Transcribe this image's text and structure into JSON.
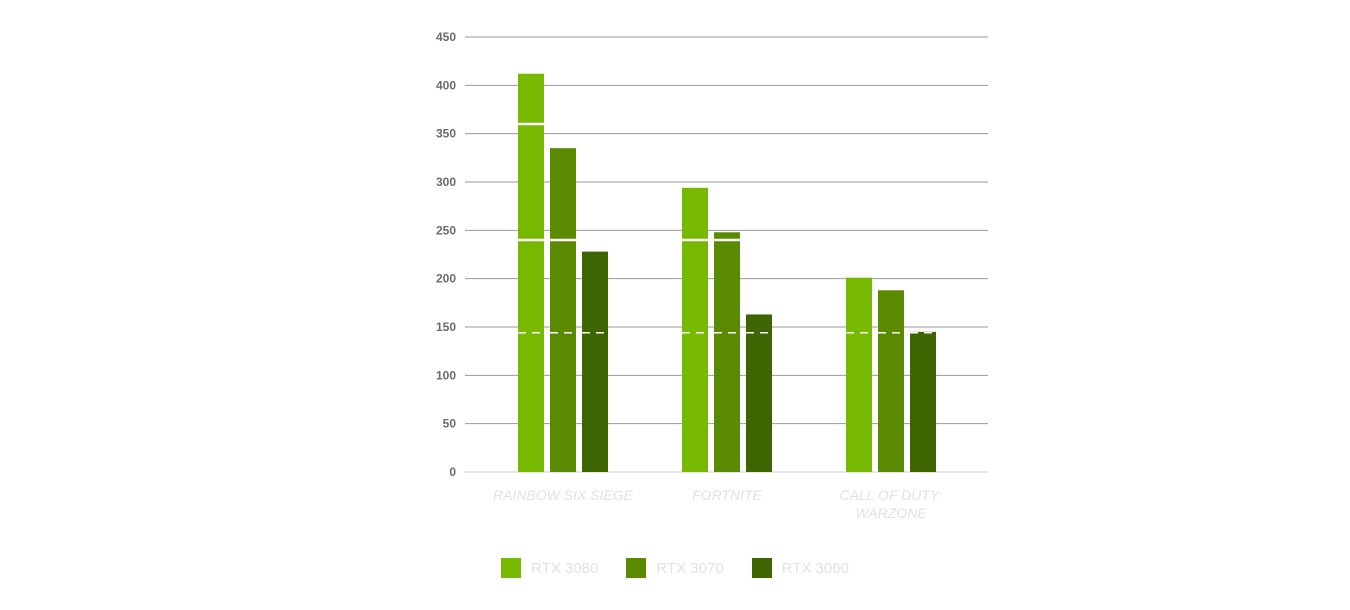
{
  "chart_data": {
    "type": "bar",
    "categories": [
      "RAINBOW SIX SIEGE",
      "FORTNITE",
      "CALL OF DUTY: WARZONE"
    ],
    "series": [
      {
        "name": "RTX 3080",
        "values": [
          412,
          294,
          201
        ],
        "color": "#76b900"
      },
      {
        "name": "RTX 3070",
        "values": [
          335,
          248,
          188
        ],
        "color": "#5a8a00"
      },
      {
        "name": "RTX 3060",
        "values": [
          228,
          163,
          145
        ],
        "color": "#3d6600"
      }
    ],
    "ylim": [
      0,
      450
    ],
    "yticks": [
      0,
      50,
      100,
      150,
      200,
      250,
      300,
      350,
      400,
      450
    ],
    "reference_lines": [
      {
        "value": 360,
        "style": "solid"
      },
      {
        "value": 240,
        "style": "solid"
      },
      {
        "value": 144,
        "style": "dashed"
      }
    ],
    "grid": true,
    "legend_position": "bottom-center",
    "title": "",
    "xlabel": "",
    "ylabel": ""
  }
}
